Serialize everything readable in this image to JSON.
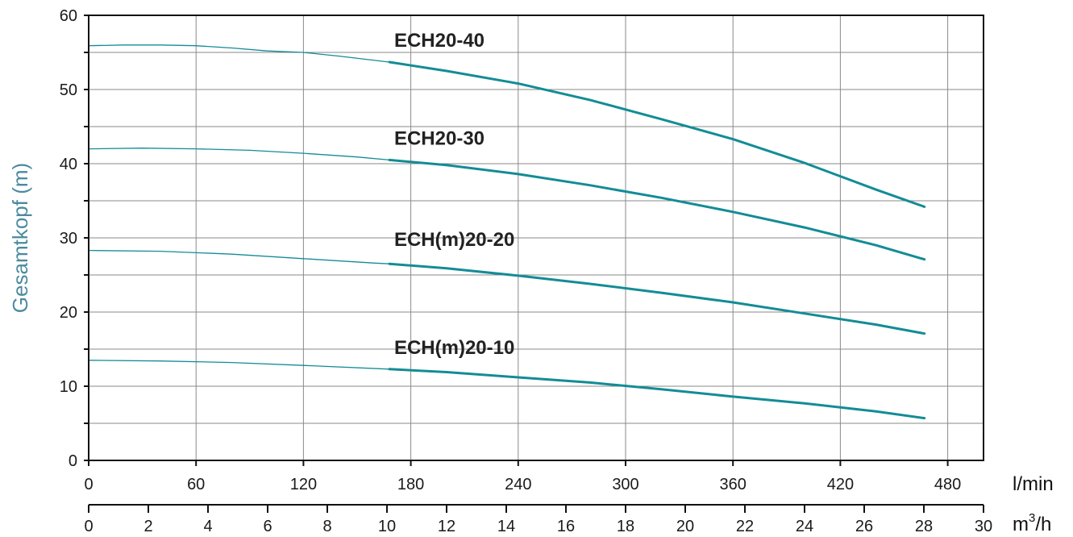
{
  "chart_data": {
    "type": "line",
    "ylabel": "Gesamtkopf (m)",
    "ylim": [
      0,
      60
    ],
    "y_ticks": [
      0,
      10,
      20,
      30,
      40,
      50,
      60
    ],
    "xlim_lmin": [
      0,
      500
    ],
    "x_ticks_lmin": [
      0,
      60,
      120,
      180,
      240,
      300,
      360,
      420,
      480
    ],
    "x_unit_lmin": "l/min",
    "xlim_m3h": [
      0,
      30
    ],
    "x_ticks_m3h": [
      0,
      2,
      4,
      6,
      8,
      10,
      12,
      14,
      16,
      18,
      20,
      22,
      24,
      26,
      28,
      30
    ],
    "x_unit_m3h_base": "m",
    "x_unit_m3h_sup": "3",
    "x_unit_m3h_tail": "/h",
    "grid": true,
    "series_color": "#138c96",
    "series": [
      {
        "name": "ECH20-40",
        "x": [
          0,
          20,
          40,
          60,
          80,
          100,
          120,
          140,
          168,
          200,
          240,
          280,
          320,
          360,
          400,
          440,
          467
        ],
        "y": [
          55.9,
          56.0,
          56.0,
          55.9,
          55.6,
          55.2,
          55.0,
          54.5,
          53.7,
          52.5,
          50.8,
          48.6,
          46.0,
          43.3,
          40.1,
          36.5,
          34.2
        ]
      },
      {
        "name": "ECH20-30",
        "x": [
          0,
          30,
          60,
          90,
          120,
          150,
          168,
          200,
          240,
          280,
          320,
          360,
          400,
          440,
          467
        ],
        "y": [
          42.0,
          42.1,
          42.0,
          41.8,
          41.4,
          40.9,
          40.5,
          39.8,
          38.6,
          37.1,
          35.4,
          33.5,
          31.4,
          29.0,
          27.1
        ]
      },
      {
        "name": "ECH(m)20-20",
        "x": [
          0,
          40,
          80,
          120,
          160,
          168,
          200,
          240,
          280,
          320,
          360,
          400,
          440,
          467
        ],
        "y": [
          28.3,
          28.2,
          27.8,
          27.2,
          26.6,
          26.5,
          25.9,
          24.9,
          23.8,
          22.6,
          21.3,
          19.8,
          18.3,
          17.1
        ]
      },
      {
        "name": "ECH(m)20-10",
        "x": [
          0,
          40,
          80,
          120,
          168,
          200,
          240,
          280,
          320,
          360,
          400,
          440,
          467
        ],
        "y": [
          13.5,
          13.4,
          13.2,
          12.8,
          12.3,
          11.9,
          11.2,
          10.5,
          9.6,
          8.6,
          7.7,
          6.6,
          5.7
        ]
      }
    ]
  }
}
